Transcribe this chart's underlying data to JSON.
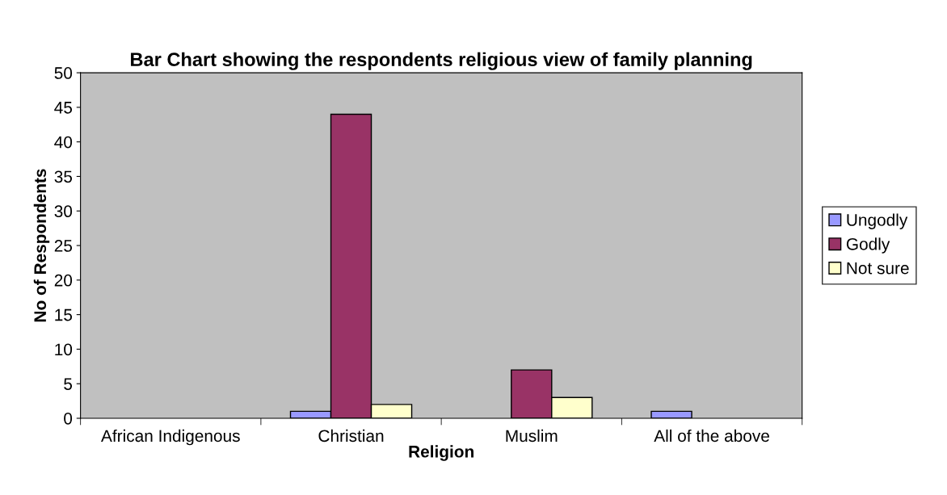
{
  "chart_data": {
    "type": "bar",
    "title": "Bar Chart showing the respondents religious view of family planning",
    "xlabel": "Religion",
    "ylabel": "No of Respondents",
    "categories": [
      "African Indigenous",
      "Christian",
      "Muslim",
      "All of the above"
    ],
    "series": [
      {
        "name": "Ungodly",
        "color": "#9999ff",
        "values": [
          0,
          1,
          0,
          1
        ]
      },
      {
        "name": "Godly",
        "color": "#993366",
        "values": [
          0,
          44,
          7,
          0
        ]
      },
      {
        "name": "Not sure",
        "color": "#ffffcc",
        "values": [
          0,
          2,
          3,
          0
        ]
      }
    ],
    "ylim": [
      0,
      50
    ],
    "yticks": [
      0,
      5,
      10,
      15,
      20,
      25,
      30,
      35,
      40,
      45,
      50
    ],
    "grid": false,
    "legend": "right"
  }
}
